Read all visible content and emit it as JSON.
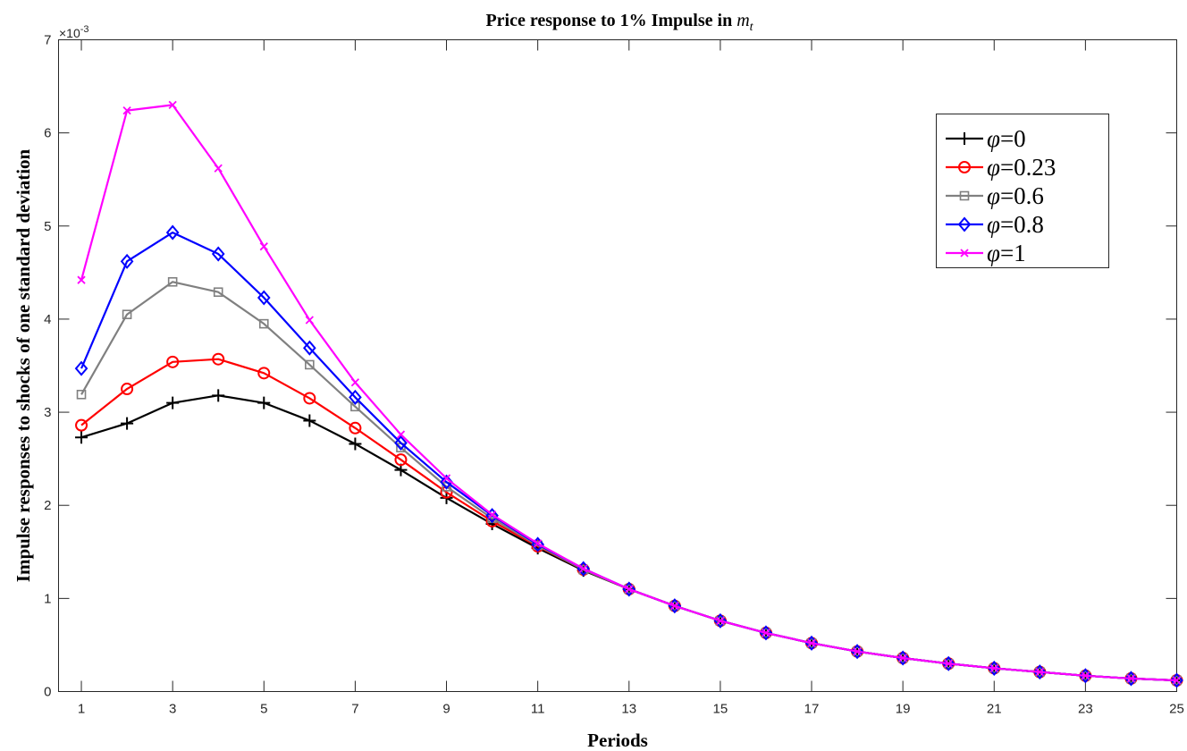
{
  "chart_data": {
    "type": "line",
    "title_prefix": "Price response to 1% Impulse in ",
    "title_var": "m",
    "title_sub": "t",
    "xlabel": "Periods",
    "ylabel": "Impulse responses to shocks of one standard deviation",
    "y_multiplier_base": "×10",
    "y_multiplier_exp": "-3",
    "xlim": [
      0.5,
      25
    ],
    "ylim": [
      0,
      7
    ],
    "xticks": [
      1,
      3,
      5,
      7,
      9,
      11,
      13,
      15,
      17,
      19,
      21,
      23,
      25
    ],
    "yticks": [
      0,
      1,
      2,
      3,
      4,
      5,
      6,
      7
    ],
    "grid": false,
    "legend_position": "top-right",
    "x": [
      1,
      2,
      3,
      4,
      5,
      6,
      7,
      8,
      9,
      10,
      11,
      12,
      13,
      14,
      15,
      16,
      17,
      18,
      19,
      20,
      21,
      22,
      23,
      24,
      25
    ],
    "series": [
      {
        "name": "φ=0",
        "symbol": "φ",
        "value": "=0",
        "color": "#000000",
        "marker": "plus",
        "values": [
          2.73,
          2.88,
          3.1,
          3.18,
          3.1,
          2.91,
          2.66,
          2.38,
          2.08,
          1.8,
          1.54,
          1.3,
          1.1,
          0.92,
          0.76,
          0.63,
          0.52,
          0.43,
          0.36,
          0.3,
          0.25,
          0.21,
          0.17,
          0.14,
          0.12
        ]
      },
      {
        "name": "φ=0.23",
        "symbol": "φ",
        "value": "=0.23",
        "color": "#ff0000",
        "marker": "circle",
        "values": [
          2.86,
          3.25,
          3.54,
          3.57,
          3.42,
          3.15,
          2.83,
          2.49,
          2.14,
          1.83,
          1.56,
          1.31,
          1.1,
          0.92,
          0.76,
          0.63,
          0.52,
          0.43,
          0.36,
          0.3,
          0.25,
          0.21,
          0.17,
          0.14,
          0.12
        ]
      },
      {
        "name": "φ=0.6",
        "symbol": "φ",
        "value": "=0.6",
        "color": "#808080",
        "marker": "square",
        "values": [
          3.19,
          4.05,
          4.4,
          4.29,
          3.95,
          3.51,
          3.06,
          2.62,
          2.2,
          1.86,
          1.57,
          1.31,
          1.1,
          0.92,
          0.76,
          0.63,
          0.52,
          0.43,
          0.36,
          0.3,
          0.25,
          0.21,
          0.17,
          0.14,
          0.12
        ]
      },
      {
        "name": "φ=0.8",
        "symbol": "φ",
        "value": "=0.8",
        "color": "#0000ff",
        "marker": "diamond",
        "values": [
          3.47,
          4.62,
          4.93,
          4.7,
          4.23,
          3.69,
          3.16,
          2.67,
          2.25,
          1.89,
          1.58,
          1.32,
          1.1,
          0.92,
          0.76,
          0.63,
          0.52,
          0.43,
          0.36,
          0.3,
          0.25,
          0.21,
          0.17,
          0.14,
          0.12
        ]
      },
      {
        "name": "φ=1",
        "symbol": "φ",
        "value": "=1",
        "color": "#ff00ff",
        "marker": "x",
        "values": [
          4.42,
          6.24,
          6.3,
          5.62,
          4.78,
          3.99,
          3.32,
          2.76,
          2.29,
          1.9,
          1.59,
          1.32,
          1.1,
          0.92,
          0.76,
          0.63,
          0.52,
          0.43,
          0.36,
          0.3,
          0.25,
          0.21,
          0.17,
          0.14,
          0.12
        ]
      }
    ]
  }
}
